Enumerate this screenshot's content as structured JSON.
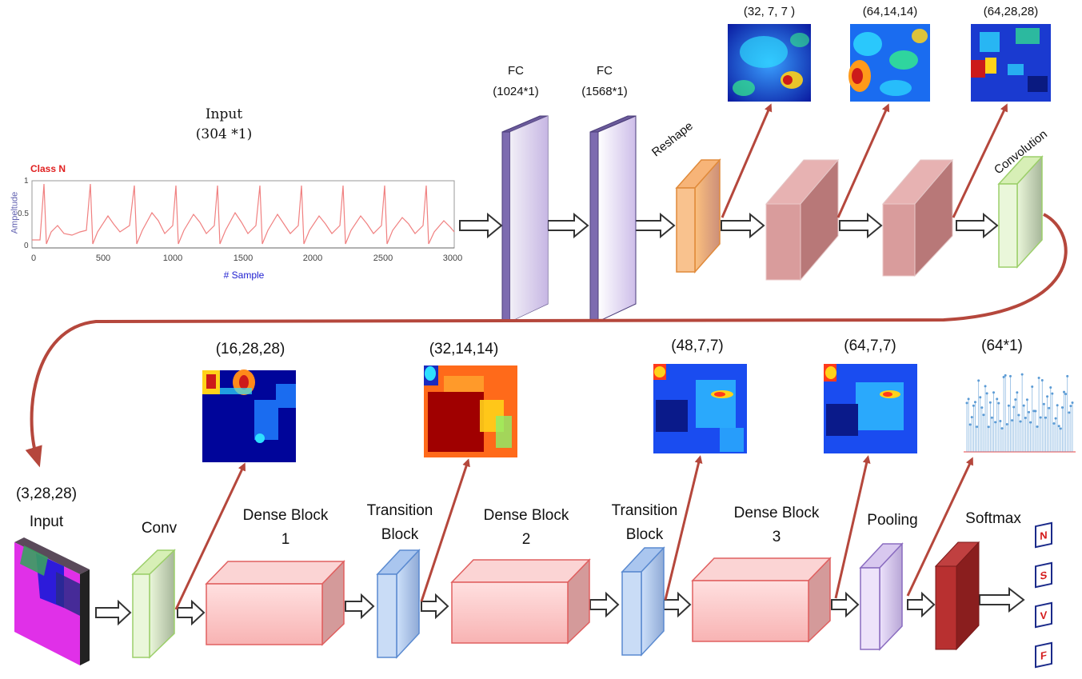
{
  "top": {
    "input_title": "Input",
    "input_dim": "(304 *1)",
    "fc1_title": "FC",
    "fc1_dim": "(1024*1)",
    "fc2_title": "FC",
    "fc2_dim": "(1568*1)",
    "reshape": "Reshape",
    "convolution": "Convolution",
    "map1_dim": "(32, 7, 7 )",
    "map2_dim": "(64,14,14)",
    "map3_dim": "(64,28,28)"
  },
  "ecg": {
    "class_label": "Class N",
    "ylabel": "Ampeltude",
    "xlabel": "# Sample",
    "yticks": [
      "1",
      "0.5",
      "0"
    ],
    "xticks": [
      "0",
      "500",
      "1000",
      "1500",
      "2000",
      "2500",
      "3000"
    ]
  },
  "bottom": {
    "input_dim": "(3,28,28)",
    "input_title": "Input",
    "conv": "Conv",
    "dense1": "Dense Block 1",
    "trans1": "Transition Block",
    "dense2": "Dense Block 2",
    "trans2": "Transition Block",
    "dense3": "Dense Block 3",
    "pooling": "Pooling",
    "softmax": "Softmax",
    "map1_dim": "(16,28,28)",
    "map2_dim": "(32,14,14)",
    "map3_dim": "(48,7,7)",
    "map4_dim": "(64,7,7)",
    "out_dim": "(64*1)"
  },
  "classes": [
    "N",
    "S",
    "V",
    "F"
  ],
  "colors": {
    "arrow_red": "#b5473c",
    "fc_layer": "#c9b8e8",
    "reshape_layer": "#f5a860",
    "conv_block": "#d98b8b",
    "conv_green": "#c5e0a8",
    "dense_block": "#f5b5b5",
    "transition_block": "#9bbce8",
    "pooling_block": "#c6b3e0",
    "softmax_block": "#b83030",
    "ecg_trace": "#f08080",
    "stem_plot": "#5b9bd5"
  }
}
